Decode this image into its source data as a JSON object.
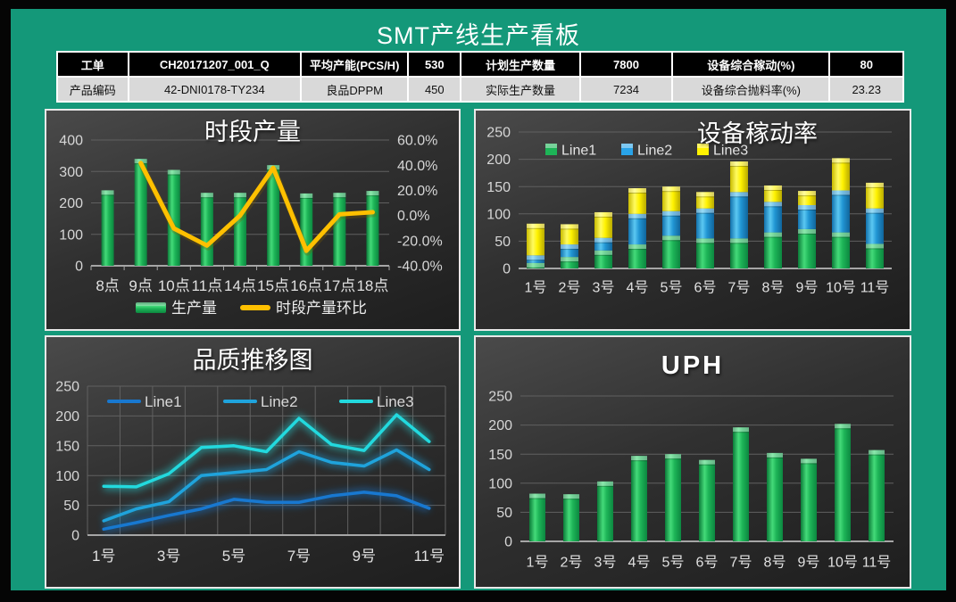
{
  "header": {
    "title": "SMT产线生产看板"
  },
  "info_table": {
    "rows": [
      {
        "cells": [
          "工单",
          "CH20171207_001_Q",
          "平均产能(PCS/H)",
          "530",
          "计划生产数量",
          "7800",
          "设备综合稼动(%)",
          "80"
        ]
      },
      {
        "cells": [
          "产品编码",
          "42-DNI0178-TY234",
          "良品DPPM",
          "450",
          "实际生产数量",
          "7234",
          "设备综合抛料率(%)",
          "23.23"
        ]
      }
    ]
  },
  "colors": {
    "page_background": "#149879",
    "outer_border": "#000000",
    "panel_border": "#e9e9e9",
    "bar_green": "#1DB457",
    "bar_blue": "#29A3E8",
    "bar_yellow": "#FFF200",
    "line_orange": "#FFC000",
    "quality_line1": "#1878D0",
    "quality_line2": "#1FA3DC",
    "quality_line3": "#22D9DE",
    "axis_text": "#d6d6d6",
    "gridline": "#606060"
  },
  "chart_data": [
    {
      "id": "hourly-output",
      "type": "combo-bar-line",
      "title": "时段产量",
      "categories": [
        "8点",
        "9点",
        "10点",
        "11点",
        "14点",
        "15点",
        "16点",
        "17点",
        "18点"
      ],
      "bars": {
        "name": "生产量",
        "color": "#1DB457",
        "values": [
          240,
          340,
          305,
          232,
          232,
          320,
          230,
          232,
          238
        ]
      },
      "line": {
        "name": "时段产量环比",
        "color": "#FFC000",
        "values_pct": [
          null,
          41.7,
          -10.3,
          -23.9,
          0.0,
          37.9,
          -28.1,
          0.9,
          2.6
        ]
      },
      "left_axis": {
        "min": 0,
        "max": 400,
        "tick_values": [
          0,
          100,
          200,
          300,
          400
        ],
        "tick_labels": [
          "0",
          "100",
          "200",
          "300",
          "400"
        ]
      },
      "right_axis": {
        "min": -40,
        "max": 60,
        "tick_values": [
          -40,
          -20,
          0,
          20,
          40,
          60
        ],
        "tick_labels": [
          "-40.0%",
          "-20.0%",
          "0.0%",
          "20.0%",
          "40.0%",
          "60.0%"
        ]
      },
      "legend_position": "bottom",
      "grid": "horizontal"
    },
    {
      "id": "equipment-utilization",
      "type": "stacked-bar",
      "title": "设备稼动率",
      "categories": [
        "1号",
        "2号",
        "3号",
        "4号",
        "5号",
        "6号",
        "7号",
        "8号",
        "9号",
        "10号",
        "11号"
      ],
      "series": [
        {
          "name": "Line1",
          "color": "#1DB457",
          "values": [
            10,
            21,
            33,
            44,
            60,
            55,
            55,
            66,
            72,
            66,
            45
          ]
        },
        {
          "name": "Line2",
          "color": "#29A3E8",
          "values": [
            14,
            23,
            23,
            56,
            45,
            55,
            85,
            56,
            44,
            77,
            65
          ]
        },
        {
          "name": "Line3",
          "color": "#FFF200",
          "values": [
            58,
            37,
            47,
            47,
            45,
            30,
            56,
            30,
            26,
            59,
            47
          ]
        }
      ],
      "totals": [
        82,
        81,
        103,
        147,
        150,
        140,
        196,
        152,
        142,
        202,
        157
      ],
      "y_axis": {
        "min": 0,
        "max": 250,
        "tick_values": [
          0,
          50,
          100,
          150,
          200,
          250
        ],
        "tick_labels": [
          "0",
          "50",
          "100",
          "150",
          "200",
          "250"
        ]
      },
      "legend_position": "top-inside",
      "grid": "horizontal"
    },
    {
      "id": "quality-trend",
      "type": "line",
      "title": "品质推移图",
      "categories": [
        "1号",
        "2号",
        "3号",
        "4号",
        "5号",
        "6号",
        "7号",
        "8号",
        "9号",
        "10号",
        "11号"
      ],
      "x_tick_labels": [
        "1号",
        "3号",
        "5号",
        "7号",
        "9号",
        "11号"
      ],
      "series": [
        {
          "name": "Line1",
          "color": "#1878D0",
          "values": [
            10,
            21,
            33,
            44,
            60,
            55,
            55,
            66,
            72,
            66,
            45
          ]
        },
        {
          "name": "Line2",
          "color": "#1FA3DC",
          "values": [
            24,
            44,
            56,
            100,
            105,
            110,
            140,
            122,
            116,
            143,
            110
          ]
        },
        {
          "name": "Line3",
          "color": "#22D9DE",
          "values": [
            82,
            81,
            103,
            147,
            150,
            140,
            196,
            152,
            142,
            202,
            157
          ]
        }
      ],
      "y_axis": {
        "min": 0,
        "max": 250,
        "tick_values": [
          0,
          50,
          100,
          150,
          200,
          250
        ],
        "tick_labels": [
          "0",
          "50",
          "100",
          "150",
          "200",
          "250"
        ]
      },
      "legend_position": "top-inside",
      "grid": "both"
    },
    {
      "id": "uph",
      "type": "bar",
      "title": "UPH",
      "categories": [
        "1号",
        "2号",
        "3号",
        "4号",
        "5号",
        "6号",
        "7号",
        "8号",
        "9号",
        "10号",
        "11号"
      ],
      "values": [
        82,
        81,
        103,
        147,
        150,
        140,
        196,
        152,
        142,
        202,
        157
      ],
      "bar_color": "#1DB457",
      "y_axis": {
        "min": 0,
        "max": 250,
        "tick_values": [
          0,
          50,
          100,
          150,
          200,
          250
        ],
        "tick_labels": [
          "0",
          "50",
          "100",
          "150",
          "200",
          "250"
        ]
      },
      "grid": "horizontal"
    }
  ]
}
